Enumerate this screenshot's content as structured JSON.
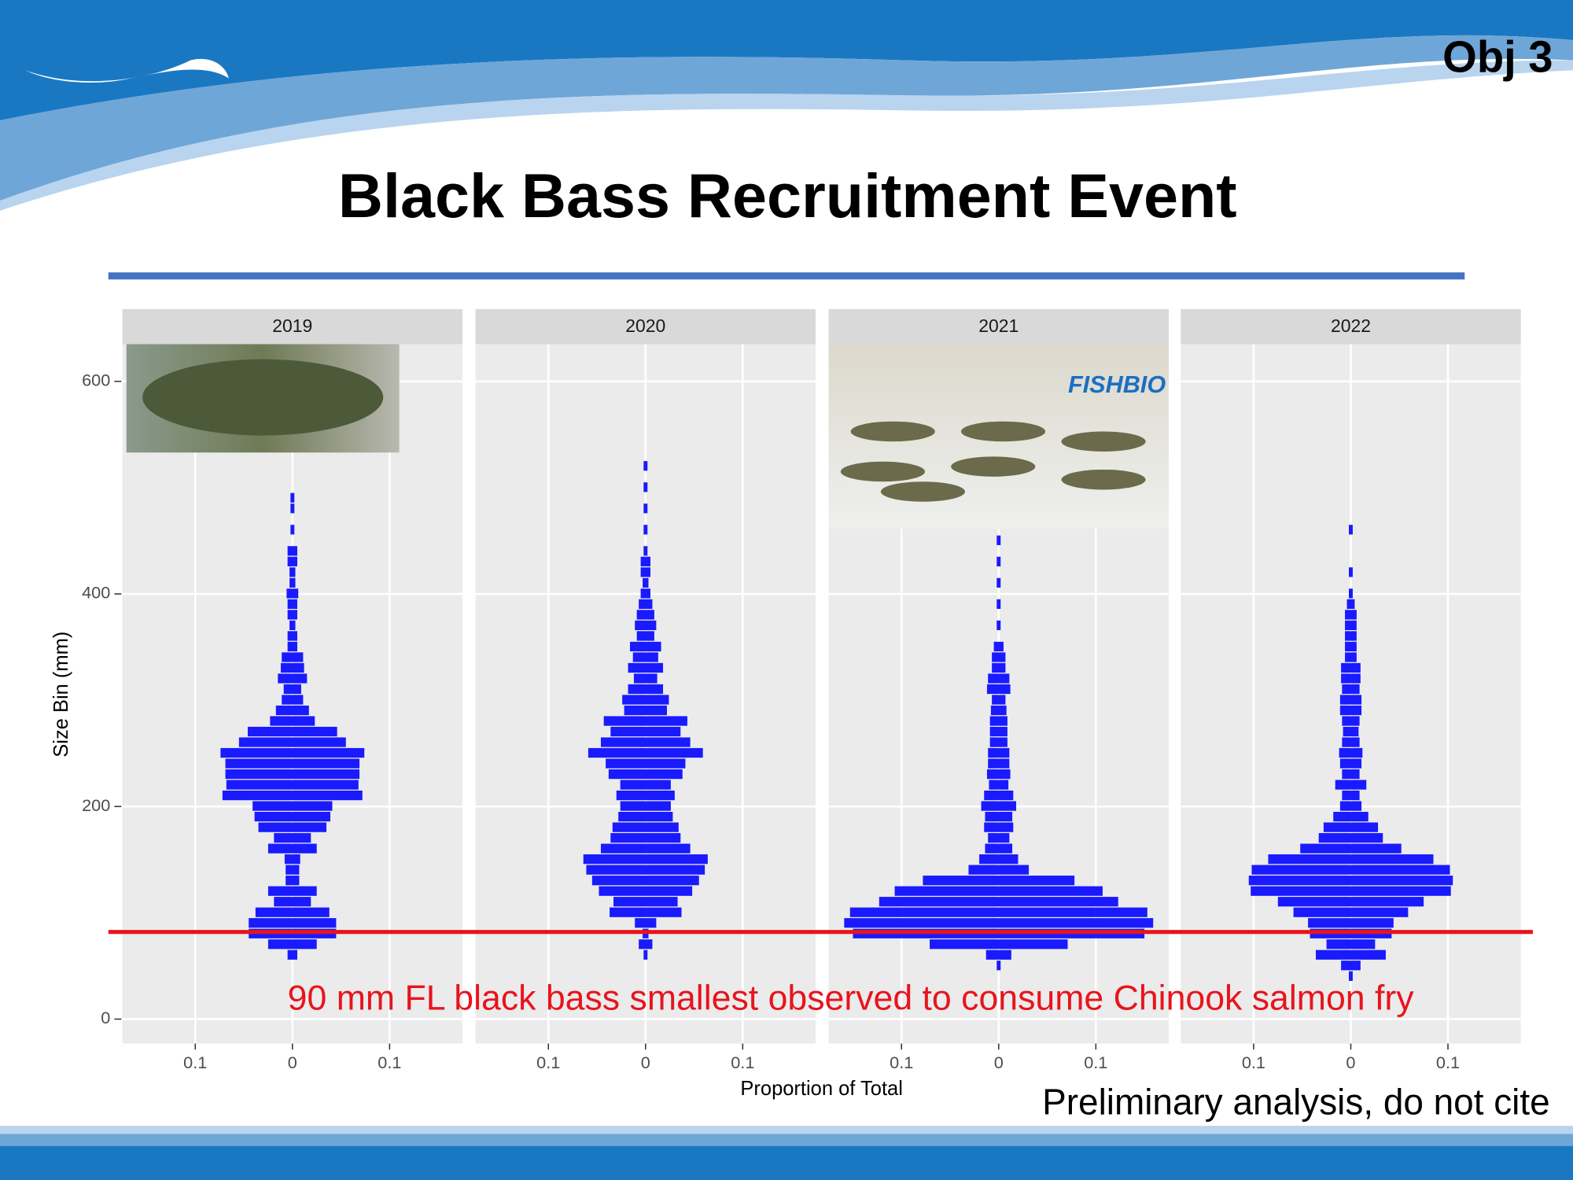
{
  "slide": {
    "tag": "Obj 3",
    "title": "Black Bass Recruitment Event",
    "footer": "Preliminary analysis, do not cite",
    "photo_text": "FISHBIO"
  },
  "chart_data": {
    "type": "mirrored-histogram",
    "y_label": "Size Bin (mm)",
    "x_label": "Proportion of Total",
    "ylim": [
      -23,
      635
    ],
    "yticks": [
      0,
      200,
      400,
      600
    ],
    "xlim": [
      -0.175,
      0.175
    ],
    "xticks": [
      {
        "value": -0.1,
        "label": "0.1"
      },
      0,
      {
        "value": 0.1,
        "label": "0.1"
      }
    ],
    "grid": true,
    "color": "#1a1aff",
    "hline": 82,
    "hline_color": "#e8141c",
    "annotation": "90 mm FL black bass smallest observed to consume Chinook salmon fry",
    "facets": [
      {
        "title": "2019",
        "y": [
          60,
          70,
          80,
          90,
          100,
          110,
          120,
          130,
          140,
          150,
          160,
          170,
          180,
          190,
          200,
          210,
          220,
          230,
          240,
          250,
          260,
          270,
          280,
          290,
          300,
          310,
          320,
          330,
          340,
          350,
          360,
          370,
          380,
          390,
          400,
          410,
          420,
          430,
          440,
          460,
          480,
          490
        ],
        "values": [
          0.005,
          0.025,
          0.045,
          0.045,
          0.038,
          0.019,
          0.025,
          0.007,
          0.007,
          0.008,
          0.025,
          0.019,
          0.035,
          0.039,
          0.041,
          0.072,
          0.068,
          0.069,
          0.069,
          0.074,
          0.055,
          0.046,
          0.023,
          0.017,
          0.011,
          0.009,
          0.015,
          0.012,
          0.011,
          0.005,
          0.005,
          0.003,
          0.005,
          0.005,
          0.006,
          0.003,
          0.003,
          0.005,
          0.005,
          0.002,
          0.002,
          0.002
        ]
      },
      {
        "title": "2020",
        "y": [
          60,
          70,
          80,
          90,
          100,
          110,
          120,
          130,
          140,
          150,
          160,
          170,
          180,
          190,
          200,
          210,
          220,
          230,
          240,
          250,
          260,
          270,
          280,
          290,
          300,
          310,
          320,
          330,
          340,
          350,
          360,
          370,
          380,
          390,
          400,
          410,
          420,
          430,
          440,
          460,
          480,
          500,
          520
        ],
        "values": [
          0.002,
          0.007,
          0.003,
          0.011,
          0.037,
          0.033,
          0.048,
          0.055,
          0.061,
          0.064,
          0.046,
          0.036,
          0.034,
          0.028,
          0.026,
          0.03,
          0.026,
          0.038,
          0.041,
          0.059,
          0.046,
          0.036,
          0.043,
          0.022,
          0.024,
          0.018,
          0.012,
          0.018,
          0.013,
          0.016,
          0.009,
          0.011,
          0.009,
          0.007,
          0.005,
          0.003,
          0.005,
          0.005,
          0.002,
          0.002,
          0.002,
          0.002,
          0.002
        ]
      },
      {
        "title": "2021",
        "y": [
          50,
          60,
          70,
          80,
          90,
          100,
          110,
          120,
          130,
          140,
          150,
          160,
          170,
          180,
          190,
          200,
          210,
          220,
          230,
          240,
          250,
          260,
          270,
          280,
          290,
          300,
          310,
          320,
          330,
          340,
          350,
          370,
          390,
          410,
          430,
          450
        ],
        "values": [
          0.002,
          0.013,
          0.071,
          0.15,
          0.159,
          0.153,
          0.123,
          0.107,
          0.078,
          0.031,
          0.02,
          0.014,
          0.011,
          0.015,
          0.014,
          0.018,
          0.015,
          0.01,
          0.012,
          0.011,
          0.011,
          0.009,
          0.009,
          0.009,
          0.008,
          0.007,
          0.012,
          0.011,
          0.007,
          0.007,
          0.005,
          0.002,
          0.002,
          0.002,
          0.002,
          0.002
        ]
      },
      {
        "title": "2022",
        "y": [
          40,
          50,
          60,
          70,
          80,
          90,
          100,
          110,
          120,
          130,
          140,
          150,
          160,
          170,
          180,
          190,
          200,
          210,
          220,
          230,
          240,
          250,
          260,
          270,
          280,
          290,
          300,
          310,
          320,
          330,
          340,
          350,
          360,
          370,
          380,
          390,
          400,
          420,
          460
        ],
        "values": [
          0.002,
          0.01,
          0.036,
          0.025,
          0.042,
          0.044,
          0.059,
          0.075,
          0.103,
          0.105,
          0.102,
          0.085,
          0.052,
          0.033,
          0.028,
          0.018,
          0.011,
          0.009,
          0.016,
          0.009,
          0.011,
          0.012,
          0.009,
          0.008,
          0.009,
          0.011,
          0.011,
          0.009,
          0.01,
          0.01,
          0.006,
          0.006,
          0.006,
          0.006,
          0.006,
          0.004,
          0.002,
          0.002,
          0.002
        ]
      }
    ]
  }
}
